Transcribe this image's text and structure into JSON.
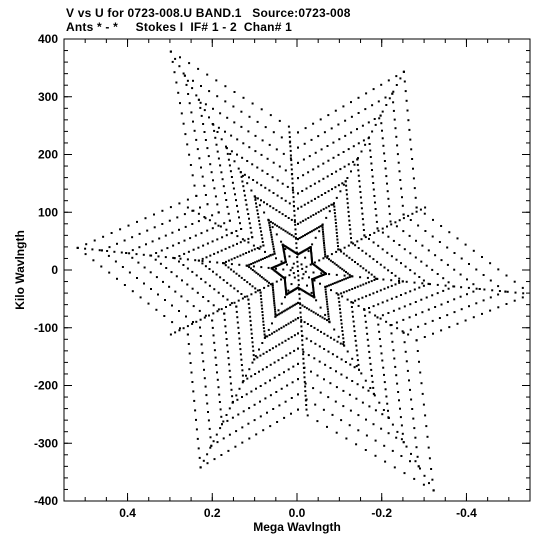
{
  "header": {
    "title_line1": "V vs U for 0723-008.U BAND.1   Source:0723-008",
    "title_line2": "Ants * - *     Stokes I  IF# 1 - 2  Chan# 1"
  },
  "chart_data": {
    "type": "scatter",
    "title": "V vs U for 0723-008.U BAND.1   Source:0723-008",
    "subtitle": "Ants * - *     Stokes I  IF# 1 - 2  Chan# 1",
    "xlabel": "Mega Wavlngth",
    "ylabel": "Kilo Wavlngth",
    "xlim": [
      0.55,
      -0.55
    ],
    "ylim": [
      -400,
      400
    ],
    "x_ticks": [
      0.4,
      0.2,
      0.0,
      -0.2,
      -0.4
    ],
    "x_tick_labels": [
      "0.4",
      "0.2",
      "0.0",
      "-0.2",
      "-0.4"
    ],
    "y_ticks": [
      -400,
      -300,
      -200,
      -100,
      0,
      100,
      200,
      300,
      400
    ],
    "y_tick_labels": [
      "-400",
      "-300",
      "-200",
      "-100",
      "0",
      "100",
      "200",
      "300",
      "400"
    ],
    "grid": false,
    "legend": "none",
    "point_color": "#000000",
    "arms": [
      {
        "u_end": 0.52,
        "v_end": 40,
        "u_mid": 0.24,
        "v_mid": 130,
        "u_far": 0.3,
        "v_far": 380
      },
      {
        "u_end": -0.25,
        "v_end": 345,
        "u_mid": -0.28,
        "v_mid": 110,
        "u_far": -0.55,
        "v_far": -40
      },
      {
        "u_end": 0.23,
        "v_end": -340,
        "u_mid": 0.26,
        "v_mid": -110,
        "u_far": 0.5,
        "v_far": 15
      },
      {
        "u_end": -0.32,
        "v_end": -380,
        "u_mid": -0.24,
        "v_mid": -120,
        "u_far": 0.0,
        "v_far": -340
      },
      {
        "u_end": 0.02,
        "v_end": 240,
        "u_mid": 0.0,
        "v_mid": 0,
        "u_far": -0.02,
        "v_far": -240
      }
    ],
    "description_points": "uv-coverage tracks: 6-pointed star pattern of dotted radial tracks symmetric about the origin"
  }
}
